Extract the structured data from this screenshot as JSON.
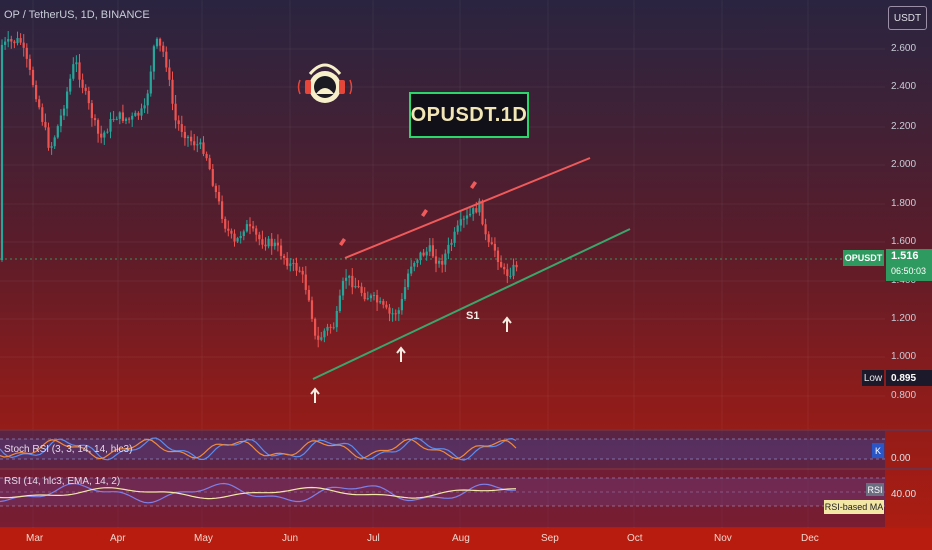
{
  "header": {
    "legend": "OP / TetherUS, 1D, BINANCE",
    "currency": "USDT"
  },
  "banner": {
    "text": "OPUSDT.1D"
  },
  "price_axis": {
    "ticks": [
      "2.600",
      "2.400",
      "2.200",
      "2.000",
      "1.800",
      "1.600",
      "1.400",
      "1.200",
      "1.000",
      "0.800"
    ]
  },
  "last_price": {
    "symbol": "OPUSDT",
    "price": "1.516",
    "countdown": "06:50:03"
  },
  "low": {
    "label": "Low",
    "value": "0.895"
  },
  "annotation": {
    "s1": "S1"
  },
  "stoch_pane": {
    "legend": "Stoch RSI (3, 3, 14, 14, hlc3)",
    "badge": "K",
    "tick": "0.00"
  },
  "rsi_pane": {
    "legend": "RSI (14, hlc3, EMA, 14, 2)",
    "badge": "RSI",
    "ma_badge": "RSI-based MA",
    "tick": "40.00"
  },
  "time_axis": {
    "labels": [
      "Mar",
      "Apr",
      "May",
      "Jun",
      "Jul",
      "Aug",
      "Sep",
      "Oct",
      "Nov",
      "Dec"
    ]
  },
  "colors": {
    "up_candle": "#26a69a",
    "down_candle": "#ef5350",
    "resistance_line": "#f05a5a",
    "support_line": "#3aa66b",
    "stoch_k": "#5b8def",
    "stoch_d": "#f08a3a",
    "rsi_line": "#7e7fe8",
    "rsi_ma": "#f3e7a6"
  },
  "icons": {
    "logo": "headphones-mascot-icon",
    "marker": "arrow-up-icon"
  }
}
